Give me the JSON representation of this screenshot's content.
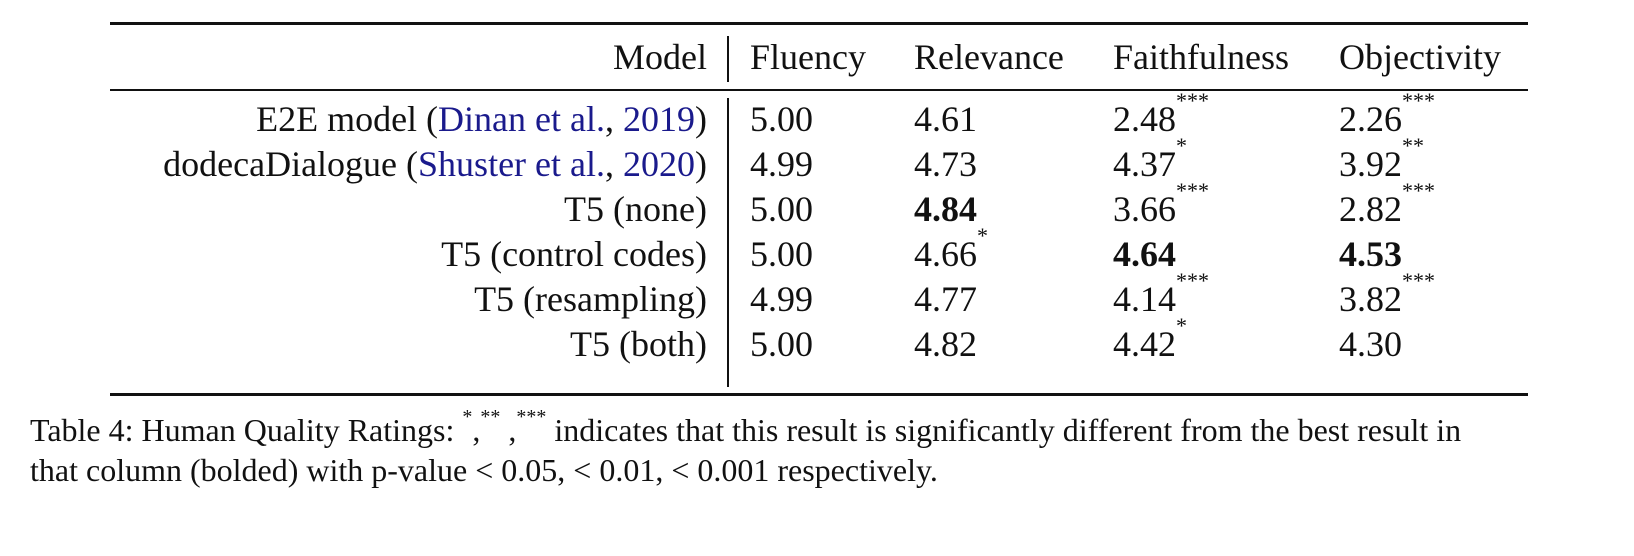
{
  "table": {
    "headers": {
      "model": "Model",
      "fluency": "Fluency",
      "relevance": "Relevance",
      "faithfulness": "Faithfulness",
      "objectivity": "Objectivity"
    },
    "rows": [
      {
        "model_prefix": "E2E model (",
        "cite_authors": "Dinan et al.",
        "cite_sep": ", ",
        "cite_year": "2019",
        "model_suffix": ")",
        "fluency": "5.00",
        "fluency_sig": "",
        "relevance": "4.61",
        "relevance_sig": "",
        "faithfulness": "2.48",
        "faithfulness_sig": "***",
        "objectivity": "2.26",
        "objectivity_sig": "***"
      },
      {
        "model_prefix": "dodecaDialogue (",
        "cite_authors": "Shuster et al.",
        "cite_sep": ", ",
        "cite_year": "2020",
        "model_suffix": ")",
        "fluency": "4.99",
        "fluency_sig": "",
        "relevance": "4.73",
        "relevance_sig": "",
        "faithfulness": "4.37",
        "faithfulness_sig": "*",
        "objectivity": "3.92",
        "objectivity_sig": "**"
      },
      {
        "model_prefix": "T5 (none)",
        "fluency": "5.00",
        "fluency_sig": "",
        "relevance": "4.84",
        "relevance_sig": "",
        "relevance_bold": true,
        "faithfulness": "3.66",
        "faithfulness_sig": "***",
        "objectivity": "2.82",
        "objectivity_sig": "***"
      },
      {
        "model_prefix": "T5 (control codes)",
        "fluency": "5.00",
        "fluency_sig": "",
        "relevance": "4.66",
        "relevance_sig": "*",
        "faithfulness": "4.64",
        "faithfulness_sig": "",
        "faithfulness_bold": true,
        "objectivity": "4.53",
        "objectivity_sig": "",
        "objectivity_bold": true
      },
      {
        "model_prefix": "T5 (resampling)",
        "fluency": "4.99",
        "fluency_sig": "",
        "relevance": "4.77",
        "relevance_sig": "",
        "faithfulness": "4.14",
        "faithfulness_sig": "***",
        "objectivity": "3.82",
        "objectivity_sig": "***"
      },
      {
        "model_prefix": "T5 (both)",
        "fluency": "5.00",
        "fluency_sig": "",
        "relevance": "4.82",
        "relevance_sig": "",
        "faithfulness": "4.42",
        "faithfulness_sig": "*",
        "objectivity": "4.30",
        "objectivity_sig": ""
      }
    ]
  },
  "caption": {
    "label": "Table 4: Human Quality Ratings: ",
    "sig1": "*",
    "comma1": ",",
    "sig2": "**",
    "comma2": " ,",
    "sig3": "***",
    "line1_rest": " indicates that this result is significantly different from the best result in",
    "line2": "that column (bolded) with p-value < 0.05, < 0.01, < 0.001 respectively."
  }
}
